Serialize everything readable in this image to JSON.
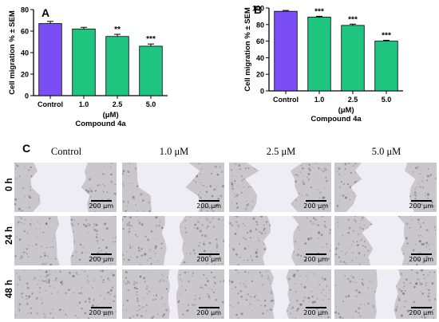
{
  "panel_labels": {
    "a": "A",
    "b": "B",
    "c": "C"
  },
  "chart_data": [
    {
      "type": "bar",
      "panel": "A",
      "categories": [
        "Control",
        "1.0",
        "2.5",
        "5.0"
      ],
      "values": [
        67,
        62,
        55,
        46
      ],
      "errors": [
        2,
        1.5,
        2,
        2
      ],
      "significance": [
        "",
        "",
        "**",
        "***"
      ],
      "colors": [
        "#7b4ef5",
        "#1fc47f",
        "#1fc47f",
        "#1fc47f"
      ],
      "ylabel": "Cell migration % ± SEM",
      "unit_label": "(μM)",
      "xlabel": "Compound 4a",
      "ylim": [
        0,
        80
      ],
      "yticks": [
        "0",
        "20",
        "40",
        "60",
        "80"
      ],
      "grid": false
    },
    {
      "type": "bar",
      "panel": "B",
      "categories": [
        "Control",
        "1.0",
        "2.5",
        "5.0"
      ],
      "values": [
        96,
        89,
        79,
        60
      ],
      "errors": [
        1,
        1,
        1.5,
        1
      ],
      "significance": [
        "",
        "***",
        "***",
        "***"
      ],
      "colors": [
        "#7b4ef5",
        "#1fc47f",
        "#1fc47f",
        "#1fc47f"
      ],
      "ylabel": "Cell migration % ± SEM",
      "unit_label": "(μM)",
      "xlabel": "Compound 4a",
      "ylim": [
        0,
        100
      ],
      "yticks": [
        "0",
        "20",
        "40",
        "60",
        "80",
        "100"
      ],
      "grid": false
    }
  ],
  "micrographs": {
    "columns": [
      "Control",
      "1.0 μM",
      "2.5 μM",
      "5.0 μM"
    ],
    "rows": [
      "0 h",
      "24 h",
      "48 h"
    ],
    "scale_label": "200 μm",
    "gap_fraction": [
      [
        0.45,
        0.5,
        0.45,
        0.52
      ],
      [
        0.15,
        0.18,
        0.28,
        0.35
      ],
      [
        0.0,
        0.08,
        0.15,
        0.22
      ]
    ]
  }
}
